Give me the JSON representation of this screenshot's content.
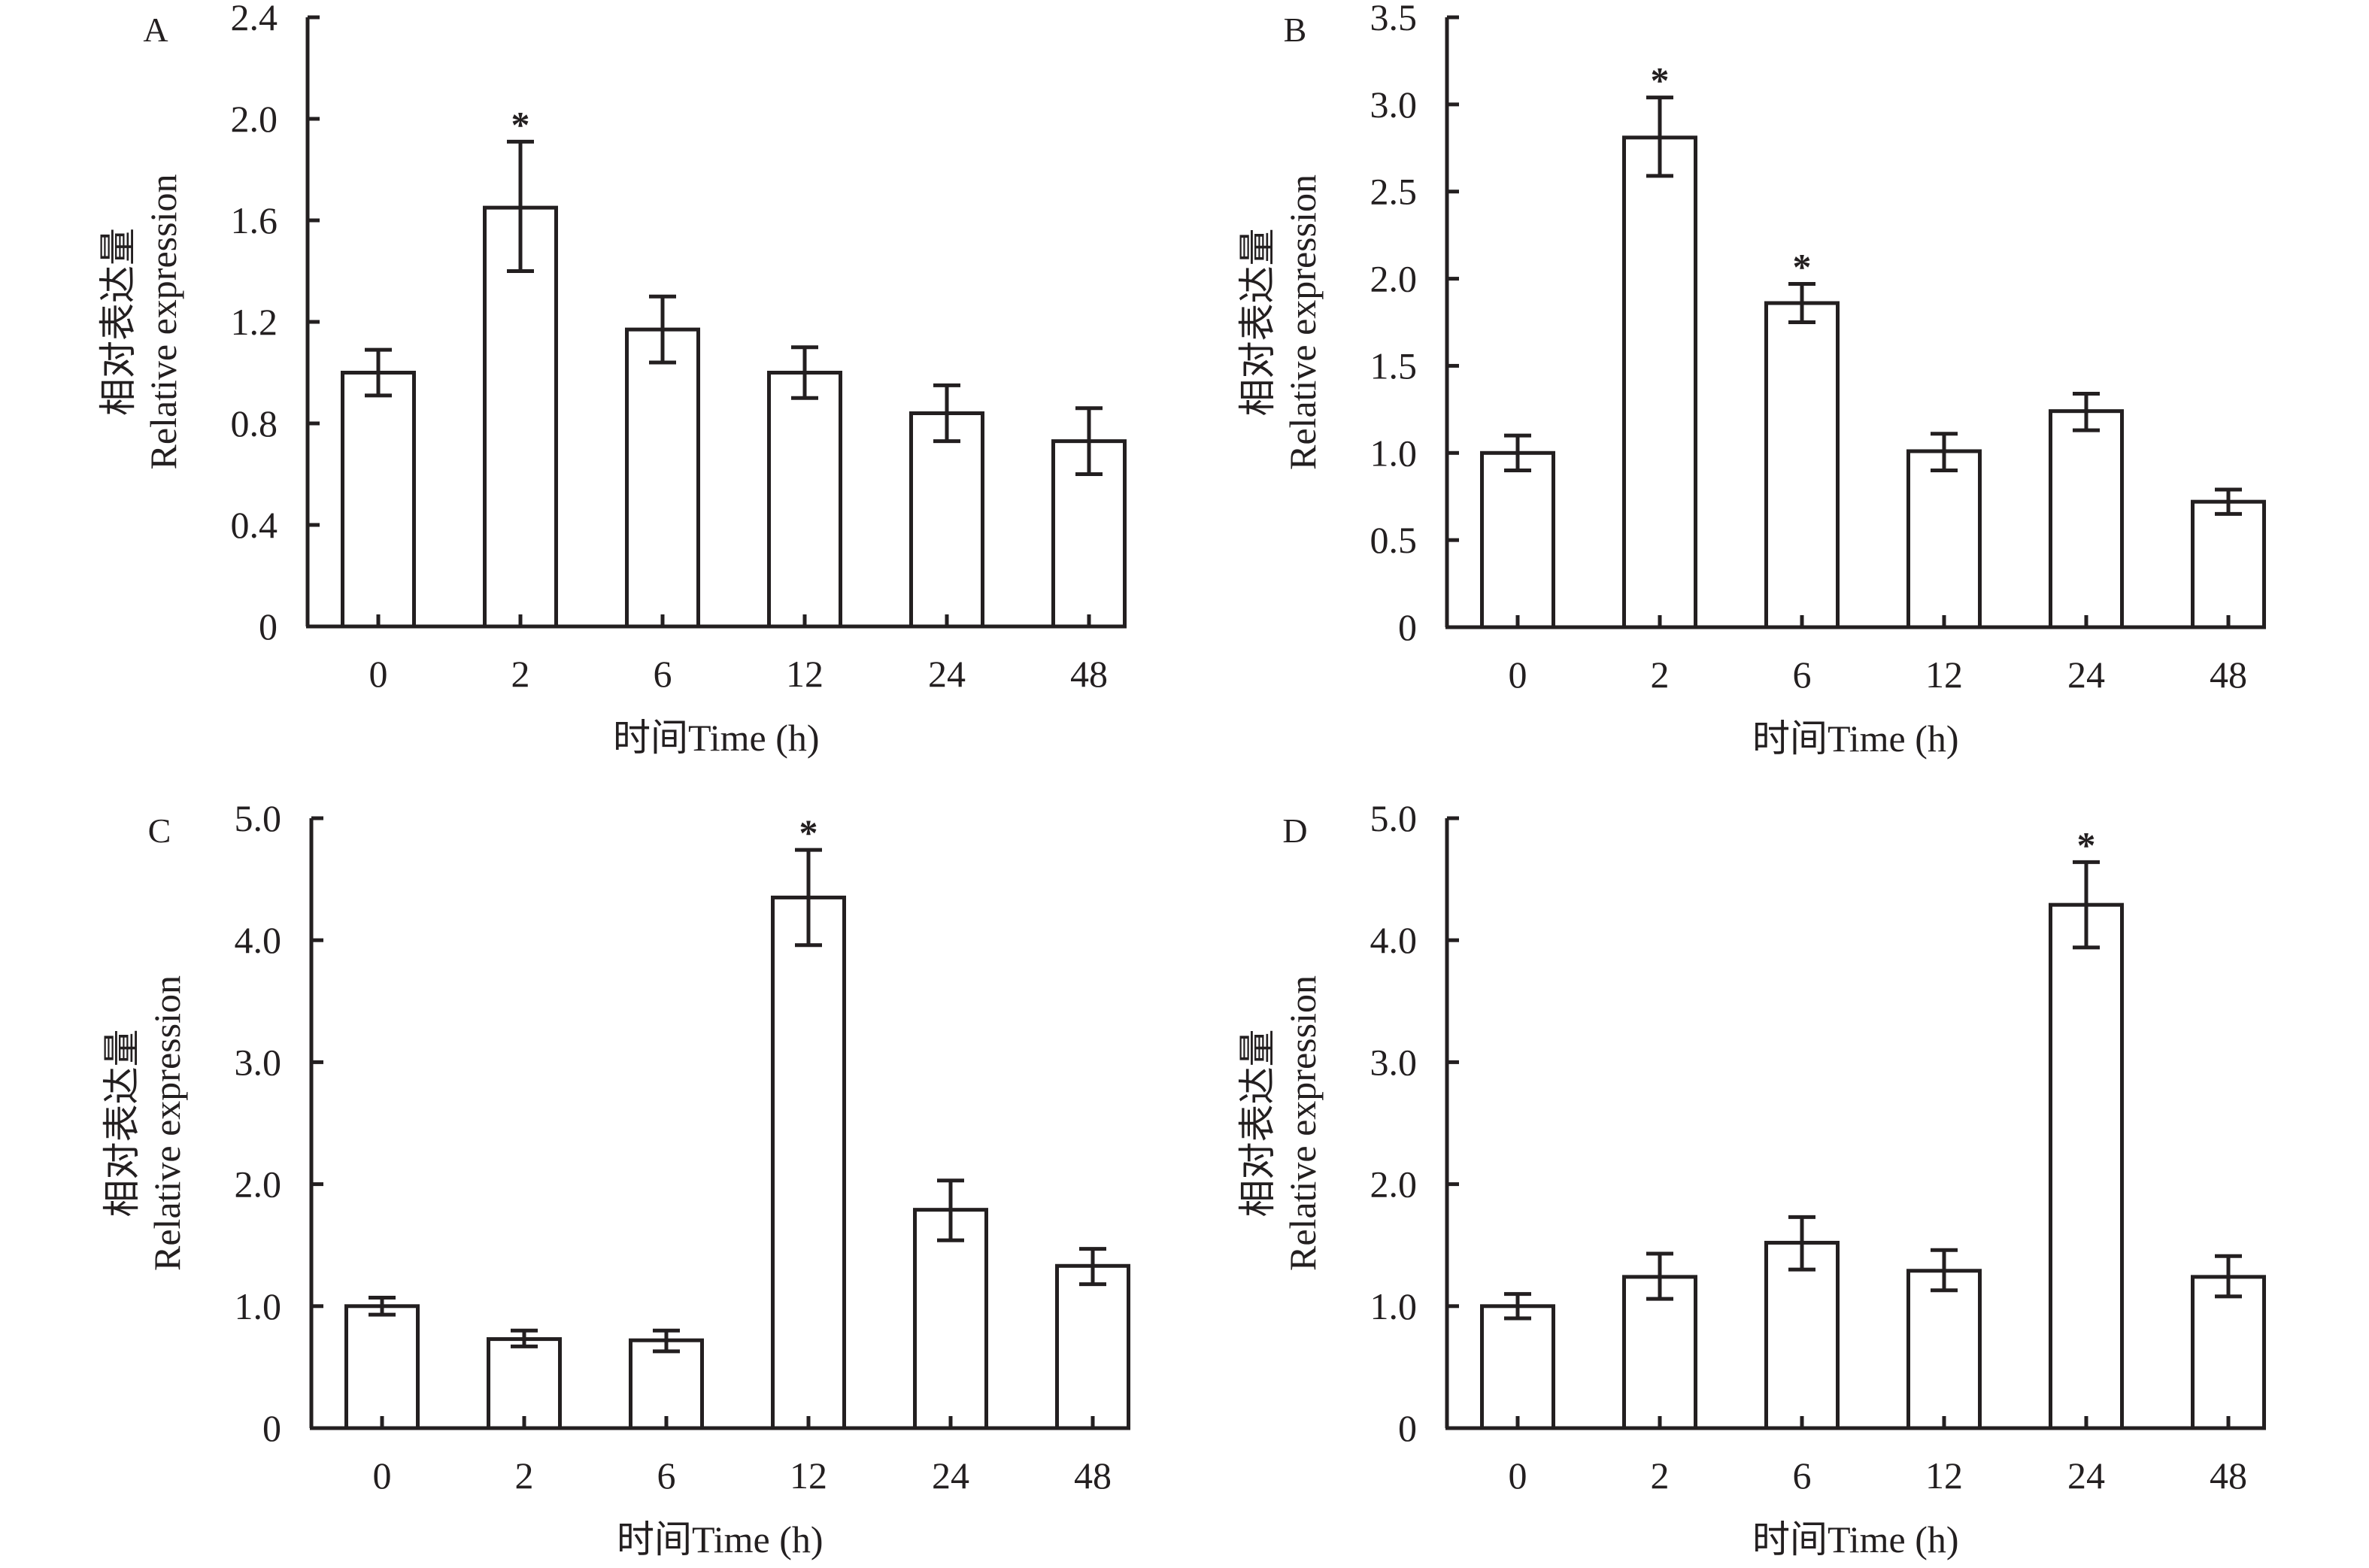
{
  "chart_data": [
    {
      "panel": "A",
      "type": "bar",
      "title": "",
      "xlabel": "时间Time (h)",
      "ylabel_cn": "相对表达量",
      "ylabel_en": "Relative expression",
      "categories": [
        "0",
        "2",
        "6",
        "12",
        "24",
        "48"
      ],
      "values": [
        1.0,
        1.65,
        1.17,
        1.0,
        0.84,
        0.73
      ],
      "error_upper": [
        1.09,
        1.91,
        1.3,
        1.1,
        0.95,
        0.86
      ],
      "error_lower": [
        0.91,
        1.4,
        1.04,
        0.9,
        0.73,
        0.6
      ],
      "significant": [
        false,
        true,
        false,
        false,
        false,
        false
      ],
      "significance_marker": "*",
      "ylim": [
        0,
        2.4
      ],
      "yticks": [
        0,
        0.4,
        0.8,
        1.2,
        1.6,
        2.0,
        2.4
      ],
      "ytick_labels": [
        "0",
        "0.4",
        "0.8",
        "1.2",
        "1.6",
        "2.0",
        "2.4"
      ],
      "grid": false,
      "legend": "none"
    },
    {
      "panel": "B",
      "type": "bar",
      "title": "",
      "xlabel": "时间Time (h)",
      "ylabel_cn": "相对表达量",
      "ylabel_en": "Relative expression",
      "categories": [
        "0",
        "2",
        "6",
        "12",
        "24",
        "48"
      ],
      "values": [
        1.0,
        2.81,
        1.86,
        1.01,
        1.24,
        0.72
      ],
      "error_upper": [
        1.1,
        3.04,
        1.97,
        1.11,
        1.34,
        0.79
      ],
      "error_lower": [
        0.9,
        2.59,
        1.75,
        0.9,
        1.13,
        0.65
      ],
      "significant": [
        false,
        true,
        true,
        false,
        false,
        false
      ],
      "significance_marker": "*",
      "ylim": [
        0,
        3.5
      ],
      "yticks": [
        0,
        0.5,
        1.0,
        1.5,
        2.0,
        2.5,
        3.0,
        3.5
      ],
      "ytick_labels": [
        "0",
        "0.5",
        "1.0",
        "1.5",
        "2.0",
        "2.5",
        "3.0",
        "3.5"
      ],
      "grid": false,
      "legend": "none"
    },
    {
      "panel": "C",
      "type": "bar",
      "title": "",
      "xlabel": "时间Time (h)",
      "ylabel_cn": "相对表达量",
      "ylabel_en": "Relative expression",
      "categories": [
        "0",
        "2",
        "6",
        "12",
        "24",
        "48"
      ],
      "values": [
        1.0,
        0.73,
        0.72,
        4.35,
        1.79,
        1.33
      ],
      "error_upper": [
        1.07,
        0.8,
        0.8,
        4.74,
        2.03,
        1.47
      ],
      "error_lower": [
        0.93,
        0.67,
        0.63,
        3.96,
        1.54,
        1.18
      ],
      "significant": [
        false,
        false,
        false,
        true,
        false,
        false
      ],
      "significance_marker": "*",
      "ylim": [
        0,
        5.0
      ],
      "yticks": [
        0,
        1.0,
        2.0,
        3.0,
        4.0,
        5.0
      ],
      "ytick_labels": [
        "0",
        "1.0",
        "2.0",
        "3.0",
        "4.0",
        "5.0"
      ],
      "grid": false,
      "legend": "none"
    },
    {
      "panel": "D",
      "type": "bar",
      "title": "",
      "xlabel": "时间Time (h)",
      "ylabel_cn": "相对表达量",
      "ylabel_en": "Relative expression",
      "categories": [
        "0",
        "2",
        "6",
        "12",
        "24",
        "48"
      ],
      "values": [
        1.0,
        1.24,
        1.52,
        1.29,
        4.29,
        1.24
      ],
      "error_upper": [
        1.1,
        1.43,
        1.73,
        1.46,
        4.64,
        1.41
      ],
      "error_lower": [
        0.9,
        1.06,
        1.3,
        1.13,
        3.94,
        1.08
      ],
      "significant": [
        false,
        false,
        false,
        false,
        true,
        false
      ],
      "significance_marker": "*",
      "ylim": [
        0,
        5.0
      ],
      "yticks": [
        0,
        1.0,
        2.0,
        3.0,
        4.0,
        5.0
      ],
      "ytick_labels": [
        "0",
        "1.0",
        "2.0",
        "3.0",
        "4.0",
        "5.0"
      ],
      "grid": false,
      "legend": "none"
    }
  ]
}
